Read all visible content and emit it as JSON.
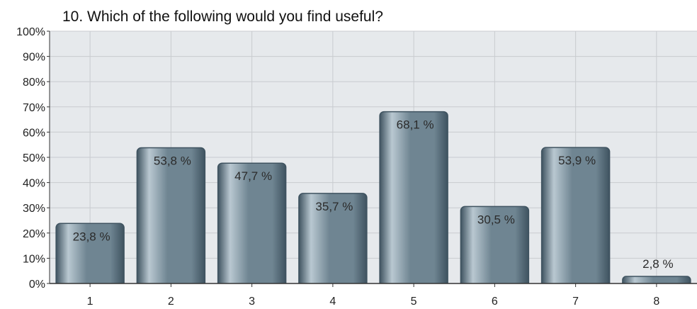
{
  "chart_data": {
    "type": "bar",
    "title": "10. Which of the following would you find useful?",
    "xlabel": "",
    "ylabel": "",
    "categories": [
      "1",
      "2",
      "3",
      "4",
      "5",
      "6",
      "7",
      "8"
    ],
    "values": [
      23.8,
      53.8,
      47.7,
      35.7,
      68.1,
      30.5,
      53.9,
      2.8
    ],
    "value_labels": [
      "23,8 %",
      "53,8 %",
      "47,7 %",
      "35,7 %",
      "68,1 %",
      "30,5 %",
      "53,9 %",
      "2,8 %"
    ],
    "ylim": [
      0,
      100
    ],
    "yticks": [
      "0%",
      "10%",
      "20%",
      "30%",
      "40%",
      "50%",
      "60%",
      "70%",
      "80%",
      "90%",
      "100%"
    ],
    "grid": true,
    "colors": {
      "plot_background": "#e6e9ec",
      "bar": "#6f8592",
      "bar_highlight": "#b9c8d1",
      "bar_dark": "#3f5360",
      "axis": "#333333"
    }
  }
}
